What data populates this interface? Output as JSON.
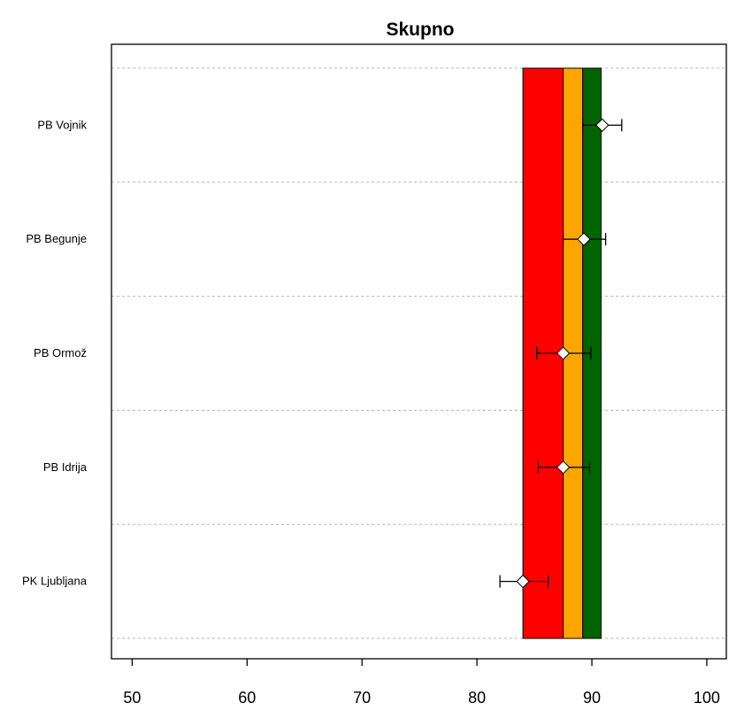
{
  "chart_data": {
    "type": "dot-whisker",
    "title": "Skupno",
    "xlabel": "",
    "ylabel": "",
    "xlim": [
      48.2,
      101.7
    ],
    "xticks": [
      50,
      60,
      70,
      80,
      90,
      100
    ],
    "xtick_labels": [
      "50",
      "60",
      "70",
      "80",
      "90",
      "100"
    ],
    "grid": "horizontal dashed between categories",
    "categories": [
      "PB Vojnik",
      "PB Begunje",
      "PB Ormož",
      "PB Idrija",
      "PK Ljubljana"
    ],
    "values": [
      90.9,
      89.3,
      87.5,
      87.5,
      84.0
    ],
    "ci_low": [
      89.2,
      87.5,
      85.2,
      85.3,
      82.0
    ],
    "ci_high": [
      92.6,
      91.2,
      89.9,
      89.8,
      86.2
    ],
    "reference_bands": [
      {
        "from": 84.0,
        "to": 87.5,
        "color": "#ff0000"
      },
      {
        "from": 87.5,
        "to": 89.2,
        "color": "#ffa500"
      },
      {
        "from": 89.2,
        "to": 90.8,
        "color": "#006400"
      }
    ],
    "marker": "diamond",
    "marker_color": "#ffffff"
  }
}
